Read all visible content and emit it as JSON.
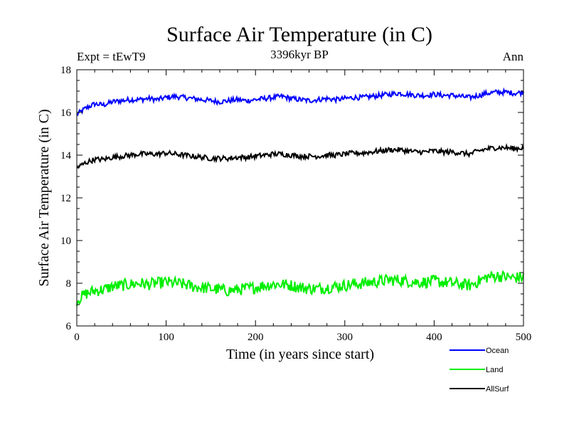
{
  "chart_data": {
    "type": "line",
    "title": "Surface Air Temperature (in C)",
    "subtitle": "3396kyr BP",
    "left_label": "Expt = tEwT9",
    "right_label": "Ann",
    "xlabel": "Time (in years since start)",
    "ylabel": "Surface Air Temperature (in C)",
    "xlim": [
      0,
      500
    ],
    "ylim": [
      6,
      18
    ],
    "x_ticks": [
      "0",
      "100",
      "200",
      "300",
      "400",
      "500"
    ],
    "y_ticks": [
      "6",
      "8",
      "10",
      "12",
      "14",
      "16",
      "18"
    ],
    "grid": false,
    "legend_position": "bottom-right",
    "x": [
      0,
      10,
      20,
      30,
      40,
      50,
      60,
      70,
      80,
      90,
      100,
      110,
      120,
      130,
      140,
      150,
      160,
      170,
      180,
      190,
      200,
      210,
      220,
      230,
      240,
      250,
      260,
      270,
      280,
      290,
      300,
      310,
      320,
      330,
      340,
      350,
      360,
      370,
      380,
      390,
      400,
      410,
      420,
      430,
      440,
      450,
      460,
      470,
      480,
      490,
      500
    ],
    "series": [
      {
        "name": "Ocean",
        "color": "#0000ff",
        "values": [
          15.9,
          16.2,
          16.4,
          16.35,
          16.5,
          16.55,
          16.6,
          16.6,
          16.65,
          16.6,
          16.7,
          16.75,
          16.7,
          16.65,
          16.6,
          16.55,
          16.5,
          16.55,
          16.6,
          16.55,
          16.6,
          16.65,
          16.7,
          16.75,
          16.65,
          16.6,
          16.55,
          16.6,
          16.65,
          16.6,
          16.65,
          16.7,
          16.7,
          16.75,
          16.8,
          16.85,
          16.9,
          16.85,
          16.8,
          16.8,
          16.85,
          16.8,
          16.8,
          16.75,
          16.7,
          16.8,
          16.9,
          16.95,
          16.95,
          16.9,
          16.95
        ]
      },
      {
        "name": "Land",
        "color": "#00ee00",
        "values": [
          7.2,
          7.5,
          7.65,
          7.7,
          7.85,
          7.9,
          7.95,
          8.0,
          7.95,
          8.0,
          8.05,
          8.0,
          7.95,
          7.85,
          7.8,
          7.75,
          7.7,
          7.65,
          7.7,
          7.75,
          7.8,
          7.9,
          7.95,
          7.95,
          7.9,
          7.8,
          7.75,
          7.75,
          7.8,
          7.85,
          7.9,
          7.95,
          8.0,
          8.05,
          8.1,
          8.15,
          8.15,
          8.1,
          8.05,
          8.05,
          8.1,
          8.05,
          8.0,
          7.95,
          7.9,
          8.1,
          8.3,
          8.35,
          8.3,
          8.25,
          8.3
        ]
      },
      {
        "name": "AllSurf",
        "color": "#000000",
        "values": [
          13.4,
          13.65,
          13.8,
          13.8,
          13.9,
          13.95,
          14.0,
          14.05,
          14.05,
          14.05,
          14.1,
          14.05,
          14.0,
          13.95,
          13.9,
          13.85,
          13.85,
          13.85,
          13.9,
          13.9,
          13.95,
          14.0,
          14.05,
          14.05,
          14.0,
          13.95,
          13.95,
          13.95,
          14.0,
          14.0,
          14.05,
          14.1,
          14.1,
          14.15,
          14.2,
          14.25,
          14.25,
          14.2,
          14.15,
          14.15,
          14.2,
          14.15,
          14.15,
          14.1,
          14.05,
          14.2,
          14.3,
          14.35,
          14.35,
          14.3,
          14.35
        ]
      }
    ]
  }
}
